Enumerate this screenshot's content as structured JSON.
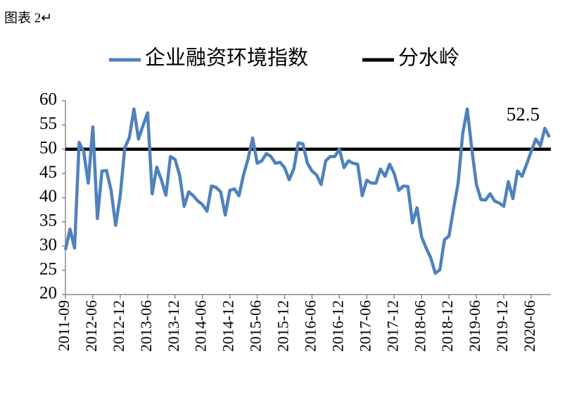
{
  "chart_data": {
    "type": "line",
    "caption": "图表 2↵",
    "categories": [
      "2011-09",
      null,
      null,
      null,
      null,
      null,
      "2012-06",
      null,
      null,
      null,
      null,
      null,
      "2012-12",
      null,
      null,
      null,
      null,
      null,
      "2013-06",
      null,
      null,
      null,
      null,
      null,
      "2013-12",
      null,
      null,
      null,
      null,
      null,
      "2014-06",
      null,
      null,
      null,
      null,
      null,
      "2014-12",
      null,
      null,
      null,
      null,
      null,
      "2015-06",
      null,
      null,
      null,
      null,
      null,
      "2015-12",
      null,
      null,
      null,
      null,
      null,
      "2016-06",
      null,
      null,
      null,
      null,
      null,
      "2016-12",
      null,
      null,
      null,
      null,
      null,
      "2017-06",
      null,
      null,
      null,
      null,
      null,
      "2017-12",
      null,
      null,
      null,
      null,
      null,
      "2018-06",
      null,
      null,
      null,
      null,
      null,
      "2018-12",
      null,
      null,
      null,
      null,
      null,
      "2019-06",
      null,
      null,
      null,
      null,
      null,
      "2019-12",
      null,
      null,
      null,
      null,
      null,
      "2020-06",
      null,
      null,
      null,
      null
    ],
    "series": [
      {
        "name": "企业融资环境指数",
        "color": "#4f81bd",
        "values": [
          29.2,
          33.5,
          29.6,
          51.4,
          49.5,
          43,
          54.6,
          35.7,
          45.5,
          45.6,
          41.5,
          34.3,
          40.4,
          50.3,
          52.4,
          58.3,
          52.1,
          54.9,
          57.5,
          40.8,
          46.3,
          43.7,
          40.5,
          48.5,
          47.9,
          44.7,
          38.2,
          41.2,
          40.4,
          39.3,
          38.6,
          37.2,
          42.4,
          42.1,
          41.2,
          36.4,
          41.5,
          41.8,
          40.4,
          44.7,
          48,
          52.3,
          47.1,
          47.6,
          49.1,
          48.5,
          47.1,
          47.3,
          46.2,
          43.7,
          45.9,
          51.3,
          51.1,
          47.1,
          45.5,
          44.7,
          42.7,
          47.6,
          48.5,
          48.5,
          50,
          46.2,
          47.6,
          47.1,
          46.9,
          40.4,
          43.6,
          43,
          43,
          45.9,
          44.4,
          46.9,
          45,
          41.5,
          42.4,
          42.3,
          34.8,
          37.9,
          31.9,
          29.6,
          27.6,
          24.4,
          25.1,
          31.3,
          32.1,
          37.7,
          43,
          53.2,
          58.3,
          50,
          42.7,
          39.6,
          39.5,
          40.8,
          39.3,
          38.9,
          38.2,
          43.3,
          39.8,
          45.5,
          44.4,
          46.9,
          49.5,
          52.1,
          50.7,
          54.3,
          52.5
        ],
        "value_labels": [
          null,
          null,
          null,
          null,
          null,
          null,
          null,
          null,
          null,
          null,
          null,
          null,
          null,
          null,
          null,
          null,
          null,
          null,
          null,
          null,
          null,
          null,
          null,
          null,
          null,
          null,
          null,
          null,
          null,
          null,
          null,
          null,
          null,
          null,
          null,
          null,
          null,
          null,
          null,
          null,
          null,
          null,
          null,
          null,
          null,
          null,
          null,
          null,
          null,
          null,
          null,
          null,
          null,
          null,
          null,
          null,
          null,
          null,
          null,
          null,
          null,
          null,
          null,
          null,
          null,
          null,
          null,
          null,
          null,
          null,
          null,
          null,
          null,
          null,
          null,
          null,
          null,
          null,
          null,
          null,
          null,
          null,
          null,
          null,
          null,
          null,
          null,
          null,
          null,
          null,
          null,
          null,
          null,
          null,
          null,
          null,
          null,
          null,
          null,
          null,
          null,
          null,
          null,
          null,
          null,
          null,
          "52.5"
        ]
      }
    ],
    "reference_line": {
      "name": "分水岭",
      "value": 50,
      "color": "#000000"
    },
    "ylim": [
      20,
      60
    ],
    "yticks": [
      20,
      25,
      30,
      35,
      40,
      45,
      50,
      55,
      60
    ],
    "grid": false
  }
}
